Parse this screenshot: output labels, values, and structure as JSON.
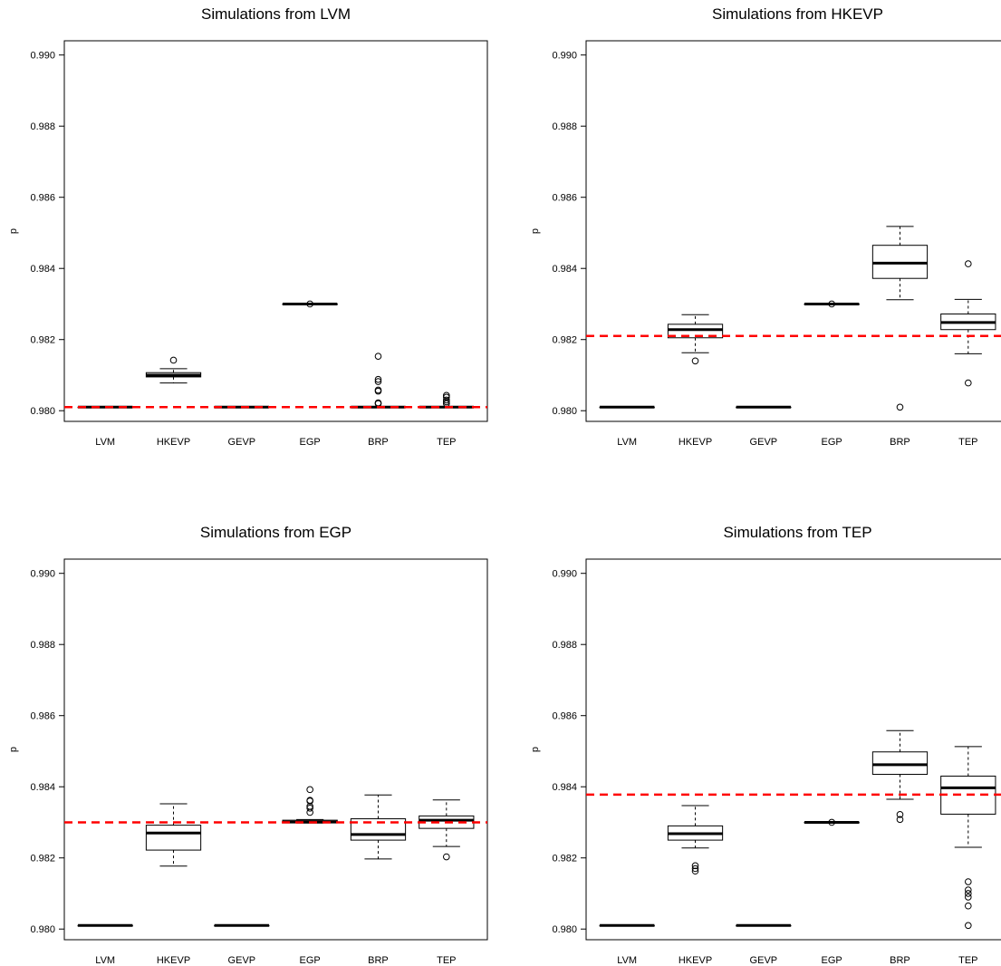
{
  "chart_data": [
    {
      "type": "boxplot",
      "title": "Simulations from LVM",
      "ylabel": "p",
      "xlabel": "",
      "ylim": [
        0.9797,
        0.9904
      ],
      "yticks": [
        "0.980",
        "0.982",
        "0.984",
        "0.986",
        "0.988",
        "0.990"
      ],
      "categories": [
        "LVM",
        "HKEVP",
        "GEVP",
        "EGP",
        "BRP",
        "TEP"
      ],
      "reference_line": 0.9801,
      "reference_color": "#ff0000",
      "boxes": [
        {
          "min": 0.9801,
          "q1": 0.9801,
          "median": 0.9801,
          "q3": 0.9801,
          "max": 0.9801,
          "outliers": []
        },
        {
          "min": 0.98078,
          "q1": 0.98095,
          "median": 0.981,
          "q3": 0.98107,
          "max": 0.98118,
          "outliers": [
            0.98142
          ]
        },
        {
          "min": 0.9801,
          "q1": 0.9801,
          "median": 0.9801,
          "q3": 0.9801,
          "max": 0.9801,
          "outliers": []
        },
        {
          "min": 0.983,
          "q1": 0.983,
          "median": 0.983,
          "q3": 0.983,
          "max": 0.983,
          "outliers": [
            0.983
          ]
        },
        {
          "min": 0.9801,
          "q1": 0.9801,
          "median": 0.9801,
          "q3": 0.9801,
          "max": 0.9801,
          "outliers": [
            0.98153,
            0.98088,
            0.98082,
            0.98058,
            0.98055,
            0.98022,
            0.9802
          ]
        },
        {
          "min": 0.9801,
          "q1": 0.9801,
          "median": 0.9801,
          "q3": 0.9801,
          "max": 0.9801,
          "outliers": [
            0.98043,
            0.98038,
            0.9803,
            0.98025,
            0.9802
          ]
        }
      ]
    },
    {
      "type": "boxplot",
      "title": "Simulations from HKEVP",
      "ylabel": "p",
      "xlabel": "",
      "ylim": [
        0.9797,
        0.9904
      ],
      "yticks": [
        "0.980",
        "0.982",
        "0.984",
        "0.986",
        "0.988",
        "0.990"
      ],
      "categories": [
        "LVM",
        "HKEVP",
        "GEVP",
        "EGP",
        "BRP",
        "TEP"
      ],
      "reference_line": 0.9821,
      "reference_color": "#ff0000",
      "boxes": [
        {
          "min": 0.9801,
          "q1": 0.9801,
          "median": 0.9801,
          "q3": 0.9801,
          "max": 0.9801,
          "outliers": []
        },
        {
          "min": 0.98163,
          "q1": 0.98205,
          "median": 0.98228,
          "q3": 0.98243,
          "max": 0.9827,
          "outliers": [
            0.9814
          ]
        },
        {
          "min": 0.9801,
          "q1": 0.9801,
          "median": 0.9801,
          "q3": 0.9801,
          "max": 0.9801,
          "outliers": []
        },
        {
          "min": 0.983,
          "q1": 0.983,
          "median": 0.983,
          "q3": 0.983,
          "max": 0.983,
          "outliers": [
            0.983
          ]
        },
        {
          "min": 0.98312,
          "q1": 0.98372,
          "median": 0.98415,
          "q3": 0.98465,
          "max": 0.98518,
          "outliers": [
            0.9801
          ]
        },
        {
          "min": 0.9816,
          "q1": 0.98228,
          "median": 0.98248,
          "q3": 0.98272,
          "max": 0.98313,
          "outliers": [
            0.98413,
            0.98078
          ]
        }
      ]
    },
    {
      "type": "boxplot",
      "title": "Simulations from EGP",
      "ylabel": "p",
      "xlabel": "",
      "ylim": [
        0.9797,
        0.9904
      ],
      "yticks": [
        "0.980",
        "0.982",
        "0.984",
        "0.986",
        "0.988",
        "0.990"
      ],
      "categories": [
        "LVM",
        "HKEVP",
        "GEVP",
        "EGP",
        "BRP",
        "TEP"
      ],
      "reference_line": 0.983,
      "reference_color": "#ff0000",
      "boxes": [
        {
          "min": 0.9801,
          "q1": 0.9801,
          "median": 0.9801,
          "q3": 0.9801,
          "max": 0.9801,
          "outliers": []
        },
        {
          "min": 0.98177,
          "q1": 0.98222,
          "median": 0.9827,
          "q3": 0.98292,
          "max": 0.98352,
          "outliers": []
        },
        {
          "min": 0.9801,
          "q1": 0.9801,
          "median": 0.9801,
          "q3": 0.9801,
          "max": 0.9801,
          "outliers": []
        },
        {
          "min": 0.98298,
          "q1": 0.98299,
          "median": 0.98301,
          "q3": 0.98306,
          "max": 0.98308,
          "outliers": [
            0.98392,
            0.98362,
            0.9836,
            0.98345,
            0.9834,
            0.98328
          ]
        },
        {
          "min": 0.98197,
          "q1": 0.9825,
          "median": 0.98266,
          "q3": 0.9831,
          "max": 0.98377,
          "outliers": []
        },
        {
          "min": 0.98232,
          "q1": 0.98283,
          "median": 0.98306,
          "q3": 0.98318,
          "max": 0.98363,
          "outliers": [
            0.98203
          ]
        }
      ]
    },
    {
      "type": "boxplot",
      "title": "Simulations from TEP",
      "ylabel": "p",
      "xlabel": "",
      "ylim": [
        0.9797,
        0.9904
      ],
      "yticks": [
        "0.980",
        "0.982",
        "0.984",
        "0.986",
        "0.988",
        "0.990"
      ],
      "categories": [
        "LVM",
        "HKEVP",
        "GEVP",
        "EGP",
        "BRP",
        "TEP"
      ],
      "reference_line": 0.98378,
      "reference_color": "#ff0000",
      "boxes": [
        {
          "min": 0.9801,
          "q1": 0.9801,
          "median": 0.9801,
          "q3": 0.9801,
          "max": 0.9801,
          "outliers": []
        },
        {
          "min": 0.98228,
          "q1": 0.9825,
          "median": 0.98268,
          "q3": 0.9829,
          "max": 0.98347,
          "outliers": [
            0.98178,
            0.9817,
            0.98163
          ]
        },
        {
          "min": 0.9801,
          "q1": 0.9801,
          "median": 0.9801,
          "q3": 0.9801,
          "max": 0.9801,
          "outliers": []
        },
        {
          "min": 0.983,
          "q1": 0.983,
          "median": 0.983,
          "q3": 0.983,
          "max": 0.983,
          "outliers": [
            0.983
          ]
        },
        {
          "min": 0.98365,
          "q1": 0.98435,
          "median": 0.98462,
          "q3": 0.98498,
          "max": 0.98558,
          "outliers": [
            0.98322,
            0.98308
          ]
        },
        {
          "min": 0.9823,
          "q1": 0.98323,
          "median": 0.98397,
          "q3": 0.9843,
          "max": 0.98513,
          "outliers": [
            0.98133,
            0.9811,
            0.981,
            0.9809,
            0.98065,
            0.9801
          ]
        }
      ]
    }
  ]
}
